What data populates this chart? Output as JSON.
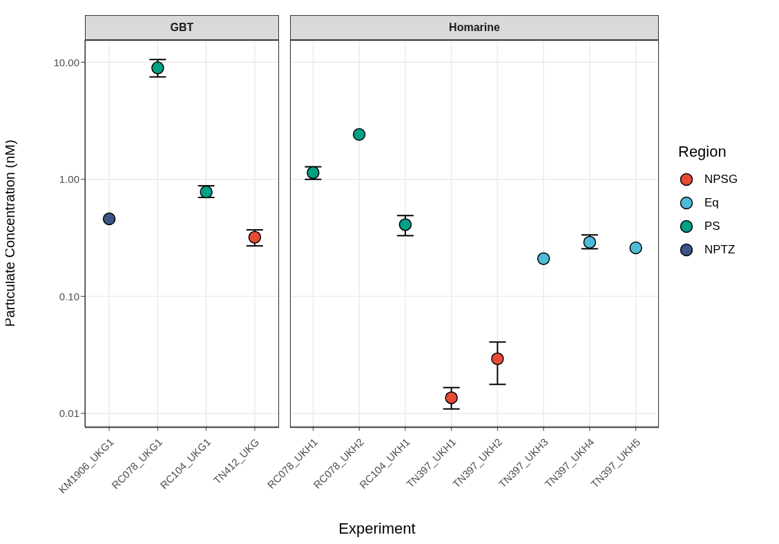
{
  "chart_data": [
    {
      "type": "scatter",
      "title": "GBT",
      "ylabel": "Particulate Concentration (nM)",
      "legend_title": "Region",
      "log": "y",
      "grid": true,
      "marker": "circle",
      "legend": "right",
      "categories": [
        "KM1906_UKG1",
        "RC078_UKG1",
        "RC104_UKG1",
        "TN412_UKG"
      ],
      "ylim": [
        0.0077,
        15.5
      ],
      "yticks": [
        {
          "value": 0.01,
          "label": "0.01"
        },
        {
          "value": 0.1,
          "label": "0.10"
        },
        {
          "value": 1,
          "label": "1.00"
        },
        {
          "value": 10,
          "label": "10.00"
        }
      ],
      "series": [
        {
          "name": "NPSG",
          "color": "#e64b35",
          "values": [
            null,
            null,
            null,
            0.32
          ],
          "errors": [
            null,
            null,
            null,
            [
              0.27,
              0.37
            ]
          ]
        },
        {
          "name": "Eq",
          "color": "#4dbbd5",
          "values": [
            null,
            null,
            null,
            null
          ]
        },
        {
          "name": "PS",
          "color": "#00a087",
          "values": [
            null,
            8.96,
            0.78,
            null
          ],
          "errors": [
            null,
            [
              7.5,
              10.56
            ],
            [
              0.7,
              0.88
            ],
            null
          ]
        },
        {
          "name": "NPTZ",
          "color": "#3c5488",
          "values": [
            0.46,
            null,
            null,
            null
          ]
        }
      ]
    },
    {
      "type": "scatter",
      "title": "Homarine",
      "xlabel": "Experiment",
      "log": "y",
      "grid": true,
      "marker": "circle",
      "tick_labels": "x",
      "categories": [
        "RC078_UKH1",
        "RC078_UKH2",
        "RC104_UKH1",
        "TN397_UKH1",
        "TN397_UKH2",
        "TN397_UKH3",
        "TN397_UKH4",
        "TN397_UKH5"
      ],
      "ylim": [
        0.0077,
        15.5
      ],
      "yticks": [
        0.01,
        0.1,
        1,
        10
      ],
      "series": [
        {
          "color": "#e64b35",
          "values": [
            null,
            null,
            null,
            0.0136,
            0.0293,
            null,
            null,
            null
          ],
          "errors": [
            null,
            null,
            null,
            [
              0.0109,
              0.0166
            ],
            [
              0.0177,
              0.0407
            ],
            null,
            null,
            null
          ]
        },
        {
          "color": "#4dbbd5",
          "values": [
            null,
            null,
            null,
            null,
            null,
            0.21,
            0.29,
            0.26
          ],
          "errors": [
            null,
            null,
            null,
            null,
            null,
            null,
            [
              0.255,
              0.335
            ],
            null
          ]
        },
        {
          "color": "#00a087",
          "values": [
            1.14,
            2.42,
            0.41,
            null,
            null,
            null,
            null,
            null
          ],
          "errors": [
            [
              1.0,
              1.28
            ],
            null,
            [
              0.33,
              0.49
            ],
            null,
            null,
            null,
            null,
            null
          ]
        }
      ]
    }
  ]
}
